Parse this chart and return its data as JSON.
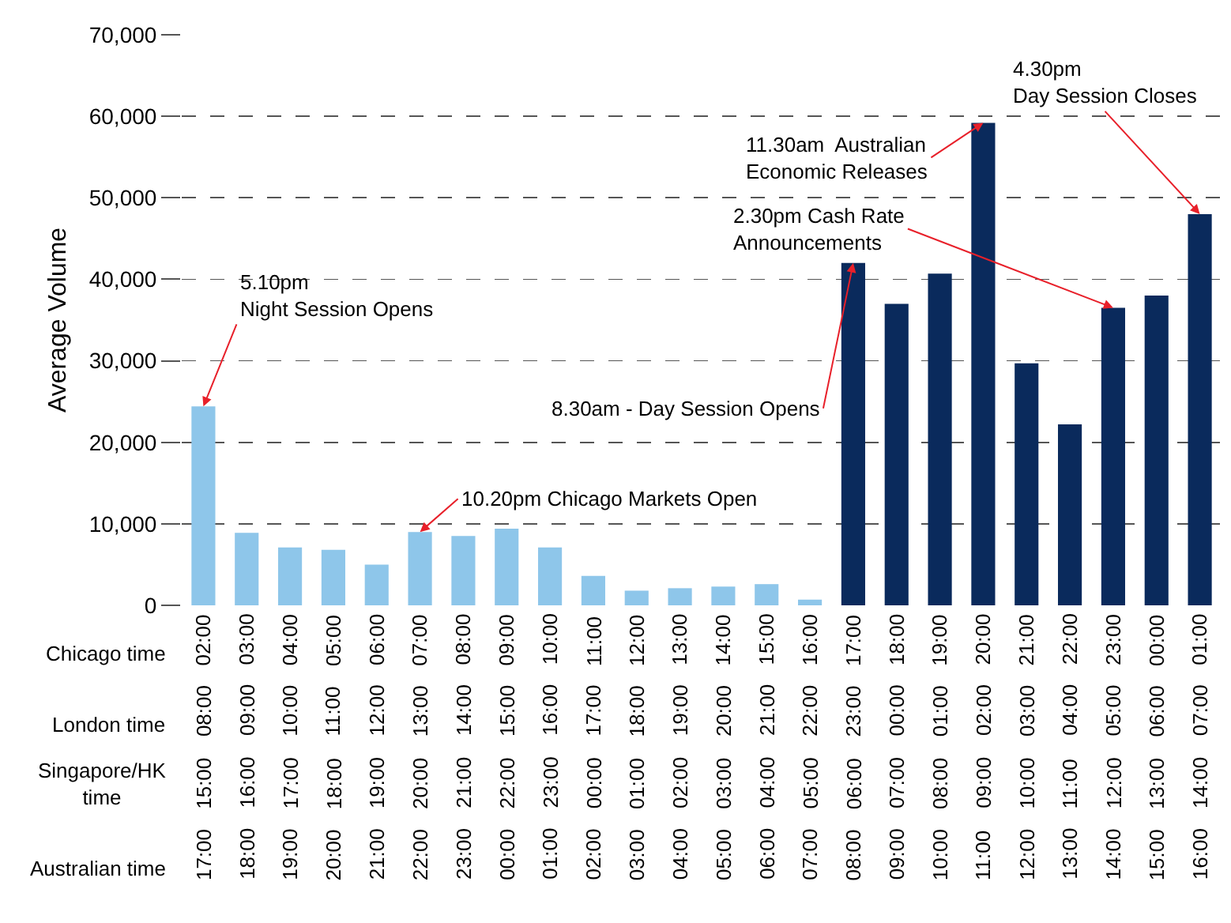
{
  "chart_data": {
    "type": "bar",
    "ylabel": "Average Volume",
    "categories": [
      "02:00\n08:00\n15:00\n17:00",
      "03:00\n09:00\n16:00\n18:00",
      "04:00\n10:00\n17:00\n19:00",
      "05:00\n11:00\n18:00\n20:00",
      "06:00\n12:00\n19:00\n21:00",
      "07:00\n13:00\n20:00\n22:00",
      "08:00\n14:00\n21:00\n23:00",
      "09:00\n15:00\n22:00\n00:00",
      "10:00\n16:00\n23:00\n01:00",
      "11:00\n17:00\n00:00\n02:00",
      "12:00\n18:00\n01:00\n03:00",
      "13:00\n19:00\n02:00\n04:00",
      "14:00\n20:00\n03:00\n05:00",
      "15:00\n21:00\n04:00\n06:00",
      "16:00\n22:00\n05:00\n07:00",
      "17:00\n23:00\n06:00\n08:00",
      "18:00\n00:00\n07:00\n09:00",
      "19:00\n01:00\n08:00\n10:00",
      "20:00\n02:00\n09:00\n11:00",
      "21:00\n03:00\n10:00\n12:00",
      "22:00\n04:00\n11:00\n13:00",
      "23:00\n05:00\n12:00\n14:00",
      "00:00\n06:00\n13:00\n15:00",
      "01:00\n07:00\n14:00\n16:00"
    ],
    "values": [
      24400,
      8900,
      7100,
      6800,
      5000,
      9000,
      8500,
      9400,
      7100,
      3600,
      1800,
      2100,
      2300,
      2600,
      700,
      42000,
      37000,
      40700,
      59200,
      29700,
      22200,
      36500,
      38000,
      48000
    ],
    "colors": [
      "#8ec6ea",
      "#8ec6ea",
      "#8ec6ea",
      "#8ec6ea",
      "#8ec6ea",
      "#8ec6ea",
      "#8ec6ea",
      "#8ec6ea",
      "#8ec6ea",
      "#8ec6ea",
      "#8ec6ea",
      "#8ec6ea",
      "#8ec6ea",
      "#8ec6ea",
      "#8ec6ea",
      "#0a2a5c",
      "#0a2a5c",
      "#0a2a5c",
      "#0a2a5c",
      "#0a2a5c",
      "#0a2a5c",
      "#0a2a5c",
      "#0a2a5c",
      "#0a2a5c"
    ],
    "ylim": [
      0,
      70000
    ],
    "yticks": [
      {
        "value": 0,
        "label": "0"
      },
      {
        "value": 10000,
        "label": "10,000"
      },
      {
        "value": 20000,
        "label": "20,000"
      },
      {
        "value": 30000,
        "label": "30,000"
      },
      {
        "value": 40000,
        "label": "40,000"
      },
      {
        "value": 50000,
        "label": "50,000"
      },
      {
        "value": 60000,
        "label": "60,000"
      },
      {
        "value": 70000,
        "label": "70,000"
      }
    ],
    "grid": "y",
    "annotations": [
      "Chicago time",
      "London time",
      "Singapore/HK\ntime",
      "Australian time",
      {
        "text": "5.10pm\nNight Session Opens",
        "x": "02:00\n08:00\n15:00\n17:00",
        "y": 24400
      },
      {
        "text": "10.20pm Chicago Markets Open",
        "x": "07:00\n13:00\n20:00\n22:00",
        "y": 9000
      },
      {
        "text": "8.30am - Day Session Opens",
        "x": "17:00\n23:00\n06:00\n08:00",
        "y": 42000
      },
      {
        "text": "11.30am  Australian\nEconomic Releases",
        "x": "20:00\n02:00\n09:00\n11:00",
        "y": 59200
      },
      {
        "text": "2.30pm Cash Rate\nAnnouncements",
        "x": "23:00\n05:00\n12:00\n14:00",
        "y": 36500
      },
      {
        "text": "4.30pm\nDay Session Closes",
        "x": "01:00\n07:00\n14:00\n16:00",
        "y": 48000
      }
    ]
  }
}
